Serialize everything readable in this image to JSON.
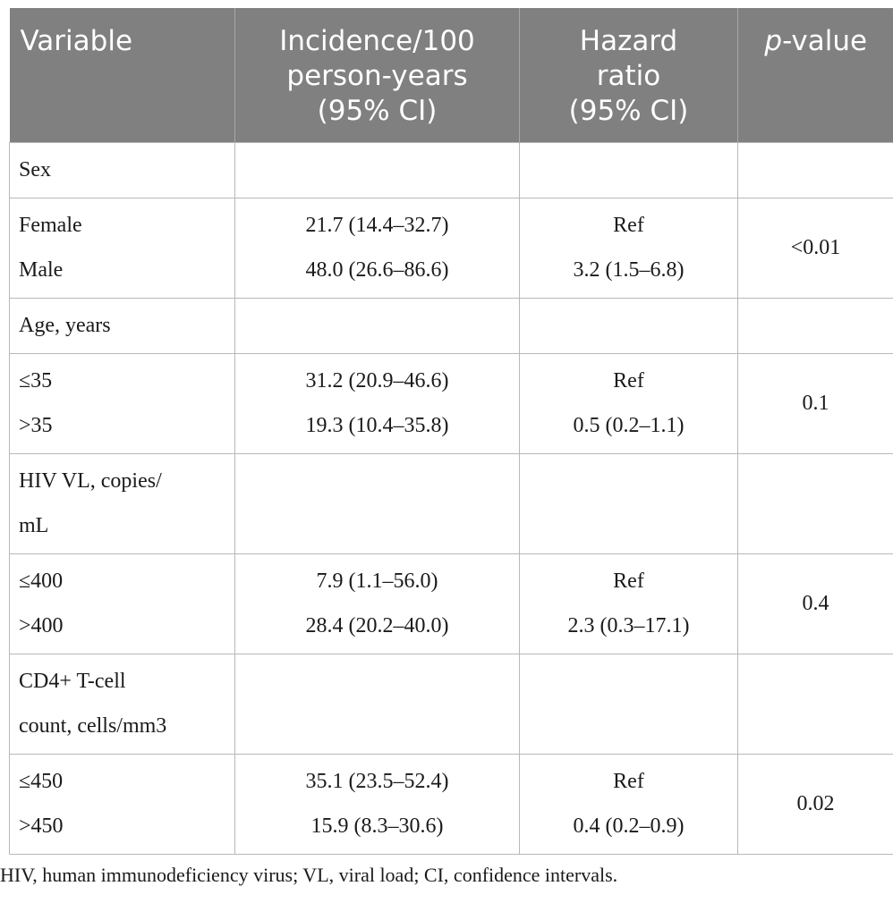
{
  "headers": {
    "variable": "Variable",
    "incidence_line1": "Incidence/100",
    "incidence_line2": "person-years",
    "incidence_line3": "(95% CI)",
    "hr_line1": "Hazard",
    "hr_line2": "ratio",
    "hr_line3": "(95% CI)",
    "p_italic": "p",
    "p_rest": "-value"
  },
  "rows": {
    "sex": {
      "label": "Sex"
    },
    "sex_groups": {
      "a": {
        "label": "Female",
        "incidence": "21.7 (14.4–32.7)",
        "hr": "Ref"
      },
      "b": {
        "label": "Male",
        "incidence": "48.0 (26.6–86.6)",
        "hr": "3.2 (1.5–6.8)"
      },
      "p": "<0.01"
    },
    "age": {
      "label": "Age, years"
    },
    "age_groups": {
      "a": {
        "label": "≤35",
        "incidence": "31.2 (20.9–46.6)",
        "hr": "Ref"
      },
      "b": {
        "label": ">35",
        "incidence": "19.3 (10.4–35.8)",
        "hr": "0.5 (0.2–1.1)"
      },
      "p": "0.1"
    },
    "hiv": {
      "label_line1": "HIV VL, copies/",
      "label_line2": "mL"
    },
    "hiv_groups": {
      "a": {
        "label": "≤400",
        "incidence": "7.9 (1.1–56.0)",
        "hr": "Ref"
      },
      "b": {
        "label": ">400",
        "incidence": "28.4 (20.2–40.0)",
        "hr": "2.3 (0.3–17.1)"
      },
      "p": "0.4"
    },
    "cd4": {
      "label_line1": "CD4+ T-cell",
      "label_line2": "count, cells/mm3"
    },
    "cd4_groups": {
      "a": {
        "label": "≤450",
        "incidence": "35.1 (23.5–52.4)",
        "hr": "Ref"
      },
      "b": {
        "label": ">450",
        "incidence": "15.9 (8.3–30.6)",
        "hr": "0.4 (0.2–0.9)"
      },
      "p": "0.02"
    }
  },
  "footnote": "HIV, human immunodeficiency virus; VL, viral load; CI, confidence intervals.",
  "colors": {
    "header_bg": "#808080",
    "header_text": "#ffffff",
    "grid": "#b8b8b8"
  }
}
